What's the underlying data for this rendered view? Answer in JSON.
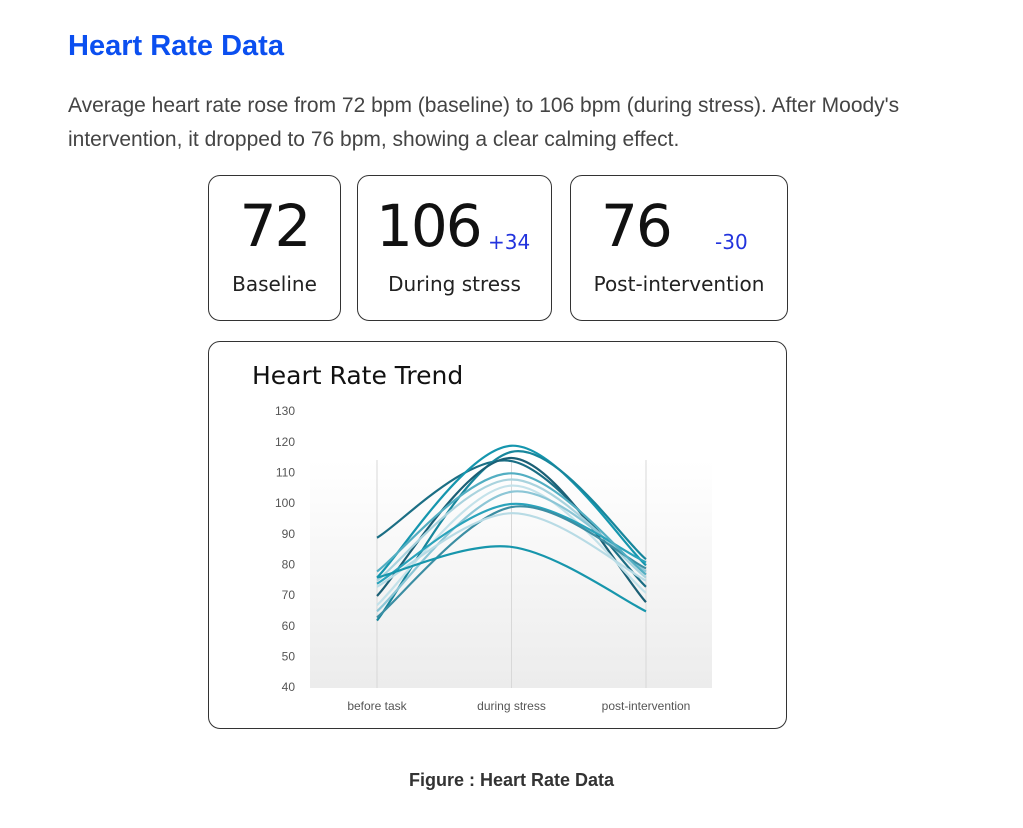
{
  "title": "Heart Rate Data",
  "description": "Average heart rate rose from 72 bpm (baseline) to 106 bpm (during stress). After Moody's intervention, it dropped to 76 bpm, showing a clear calming effect.",
  "stats": [
    {
      "value": "72",
      "label": "Baseline"
    },
    {
      "value": "106",
      "delta": "+34",
      "label": "During stress"
    },
    {
      "value": "76",
      "delta": "-30",
      "label": "Post-intervention"
    }
  ],
  "chart_data": {
    "type": "line",
    "title": "Heart Rate Trend",
    "categories": [
      "before task",
      "during stress",
      "post-intervention"
    ],
    "ylim": [
      40,
      130
    ],
    "yticks": [
      40,
      50,
      60,
      70,
      80,
      90,
      100,
      110,
      120,
      130
    ],
    "series": [
      {
        "color": "#1b6e84",
        "values": [
          89,
          114,
          73
        ]
      },
      {
        "color": "#1596ae",
        "values": [
          76,
          119,
          80
        ]
      },
      {
        "color": "#17869c",
        "values": [
          62,
          117,
          82
        ]
      },
      {
        "color": "#1b5f75",
        "values": [
          70,
          115,
          68
        ]
      },
      {
        "color": "#a9d3de",
        "values": [
          75,
          108,
          76
        ]
      },
      {
        "color": "#c4e2ea",
        "values": [
          67,
          106,
          71
        ]
      },
      {
        "color": "#8cc6d6",
        "values": [
          65,
          104,
          78
        ]
      },
      {
        "color": "#2aa3bb",
        "values": [
          74,
          100,
          81
        ]
      },
      {
        "color": "#3c8ea3",
        "values": [
          63,
          99,
          79
        ]
      },
      {
        "color": "#b8dbe5",
        "values": [
          73,
          97,
          75
        ]
      },
      {
        "color": "#1796ac",
        "values": [
          76,
          86,
          65
        ]
      },
      {
        "color": "#52aec2",
        "values": [
          78,
          110,
          77
        ]
      }
    ]
  },
  "caption": "Figure : Heart Rate Data"
}
